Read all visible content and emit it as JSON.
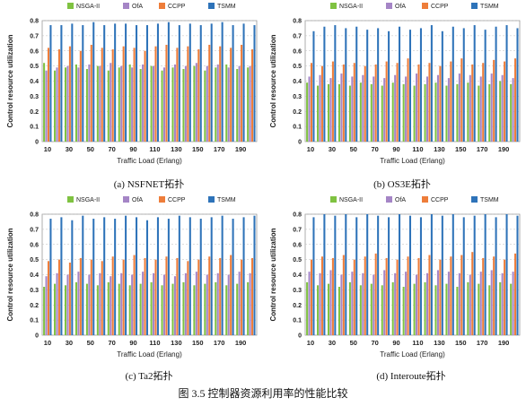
{
  "figure_caption": "图 3.5  控制器资源利用率的性能比较",
  "colors": {
    "NSGA-II": "#7fc241",
    "OfA": "#a585c6",
    "CCPP": "#ee7d3a",
    "TSMM": "#2e73b9"
  },
  "chart_data": [
    {
      "type": "bar",
      "caption": "(a)  NSFNET拓扑",
      "xlabel": "Traffic Load (Erlang)",
      "ylabel": "Control resource utilization",
      "ylim": [
        0,
        0.8
      ],
      "yticks": [
        "0",
        "0.1",
        "0.2",
        "0.3",
        "0.4",
        "0.5",
        "0.6",
        "0.7",
        "0.8"
      ],
      "xtick_labels": [
        "10",
        "30",
        "50",
        "70",
        "90",
        "110",
        "130",
        "150",
        "170",
        "190"
      ],
      "legend_position": "top",
      "grid": true,
      "categories": [
        "10",
        "20",
        "30",
        "40",
        "50",
        "60",
        "70",
        "80",
        "90",
        "100",
        "110",
        "120",
        "130",
        "140",
        "150",
        "160",
        "170",
        "180",
        "190",
        "200"
      ],
      "series": [
        {
          "name": "NSGA-II",
          "values": [
            0.52,
            0.47,
            0.49,
            0.51,
            0.48,
            0.5,
            0.47,
            0.49,
            0.51,
            0.48,
            0.5,
            0.47,
            0.49,
            0.48,
            0.5,
            0.47,
            0.49,
            0.51,
            0.48,
            0.49
          ]
        },
        {
          "name": "OfA",
          "values": [
            0.47,
            0.49,
            0.5,
            0.49,
            0.51,
            0.5,
            0.52,
            0.5,
            0.49,
            0.51,
            0.5,
            0.49,
            0.51,
            0.5,
            0.52,
            0.5,
            0.51,
            0.49,
            0.5,
            0.5
          ]
        },
        {
          "name": "CCPP",
          "values": [
            0.62,
            0.61,
            0.63,
            0.6,
            0.64,
            0.62,
            0.61,
            0.63,
            0.62,
            0.6,
            0.63,
            0.64,
            0.62,
            0.63,
            0.61,
            0.64,
            0.63,
            0.62,
            0.64,
            0.61
          ]
        },
        {
          "name": "TSMM",
          "values": [
            0.77,
            0.77,
            0.78,
            0.77,
            0.79,
            0.77,
            0.78,
            0.78,
            0.77,
            0.77,
            0.78,
            0.79,
            0.77,
            0.78,
            0.77,
            0.78,
            0.79,
            0.77,
            0.78,
            0.77
          ]
        }
      ]
    },
    {
      "type": "bar",
      "caption": "(b)  OS3E拓扑",
      "xlabel": "Traffic Load (Erlang)",
      "ylabel": "Control resource utilization",
      "ylim": [
        0,
        0.8
      ],
      "yticks": [
        "0",
        "0.1",
        "0.2",
        "0.3",
        "0.4",
        "0.5",
        "0.6",
        "0.7",
        "0.8"
      ],
      "xtick_labels": [
        "10",
        "30",
        "50",
        "70",
        "90",
        "110",
        "130",
        "150",
        "170",
        "190"
      ],
      "legend_position": "top",
      "grid": true,
      "categories": [
        "10",
        "20",
        "30",
        "40",
        "50",
        "60",
        "70",
        "80",
        "90",
        "100",
        "110",
        "120",
        "130",
        "140",
        "150",
        "160",
        "170",
        "180",
        "190",
        "200"
      ],
      "series": [
        {
          "name": "NSGA-II",
          "values": [
            0.39,
            0.37,
            0.38,
            0.38,
            0.37,
            0.39,
            0.38,
            0.37,
            0.39,
            0.38,
            0.37,
            0.38,
            0.39,
            0.37,
            0.38,
            0.39,
            0.37,
            0.38,
            0.4,
            0.38
          ]
        },
        {
          "name": "OfA",
          "values": [
            0.43,
            0.44,
            0.42,
            0.45,
            0.43,
            0.44,
            0.43,
            0.42,
            0.44,
            0.43,
            0.45,
            0.43,
            0.44,
            0.42,
            0.45,
            0.44,
            0.43,
            0.45,
            0.44,
            0.42
          ]
        },
        {
          "name": "CCPP",
          "values": [
            0.52,
            0.5,
            0.53,
            0.51,
            0.52,
            0.5,
            0.51,
            0.53,
            0.52,
            0.55,
            0.51,
            0.52,
            0.5,
            0.53,
            0.55,
            0.51,
            0.52,
            0.54,
            0.53,
            0.55
          ]
        },
        {
          "name": "TSMM",
          "values": [
            0.73,
            0.76,
            0.77,
            0.75,
            0.76,
            0.74,
            0.75,
            0.73,
            0.76,
            0.74,
            0.75,
            0.77,
            0.73,
            0.76,
            0.75,
            0.77,
            0.74,
            0.76,
            0.77,
            0.75
          ]
        }
      ]
    },
    {
      "type": "bar",
      "caption": "(c)  Ta2拓扑",
      "xlabel": "Traffic Load (Erlang)",
      "ylabel": "Control resource utilization",
      "ylim": [
        0,
        0.8
      ],
      "yticks": [
        "0",
        "0.1",
        "0.2",
        "0.3",
        "0.4",
        "0.5",
        "0.6",
        "0.7",
        "0.8"
      ],
      "xtick_labels": [
        "10",
        "30",
        "50",
        "70",
        "90",
        "110",
        "130",
        "150",
        "170",
        "190"
      ],
      "legend_position": "top",
      "grid": true,
      "categories": [
        "10",
        "20",
        "30",
        "40",
        "50",
        "60",
        "70",
        "80",
        "90",
        "100",
        "110",
        "120",
        "130",
        "140",
        "150",
        "160",
        "170",
        "180",
        "190",
        "200"
      ],
      "series": [
        {
          "name": "NSGA-II",
          "values": [
            0.32,
            0.34,
            0.33,
            0.35,
            0.34,
            0.33,
            0.35,
            0.34,
            0.33,
            0.34,
            0.35,
            0.33,
            0.34,
            0.35,
            0.33,
            0.34,
            0.35,
            0.33,
            0.34,
            0.35
          ]
        },
        {
          "name": "OfA",
          "values": [
            0.39,
            0.41,
            0.4,
            0.42,
            0.4,
            0.41,
            0.39,
            0.41,
            0.4,
            0.42,
            0.41,
            0.4,
            0.39,
            0.41,
            0.42,
            0.4,
            0.41,
            0.4,
            0.42,
            0.41
          ]
        },
        {
          "name": "CCPP",
          "values": [
            0.49,
            0.5,
            0.48,
            0.51,
            0.5,
            0.49,
            0.52,
            0.5,
            0.53,
            0.51,
            0.5,
            0.52,
            0.51,
            0.49,
            0.5,
            0.52,
            0.51,
            0.53,
            0.5,
            0.51
          ]
        },
        {
          "name": "TSMM",
          "values": [
            0.77,
            0.78,
            0.76,
            0.79,
            0.77,
            0.78,
            0.77,
            0.79,
            0.78,
            0.76,
            0.78,
            0.77,
            0.79,
            0.78,
            0.77,
            0.78,
            0.79,
            0.77,
            0.78,
            0.79
          ]
        }
      ]
    },
    {
      "type": "bar",
      "caption": "(d)  Interoute拓扑",
      "xlabel": "Traffic Load (Erlang)",
      "ylabel": "Control resource utilization",
      "ylim": [
        0,
        0.8
      ],
      "yticks": [
        "0",
        "0.1",
        "0.2",
        "0.3",
        "0.4",
        "0.5",
        "0.6",
        "0.7",
        "0.8"
      ],
      "xtick_labels": [
        "10",
        "30",
        "50",
        "70",
        "90",
        "110",
        "130",
        "150",
        "170",
        "190"
      ],
      "legend_position": "top",
      "grid": true,
      "categories": [
        "10",
        "20",
        "30",
        "40",
        "50",
        "60",
        "70",
        "80",
        "90",
        "100",
        "110",
        "120",
        "130",
        "140",
        "150",
        "160",
        "170",
        "180",
        "190",
        "200"
      ],
      "series": [
        {
          "name": "NSGA-II",
          "values": [
            0.35,
            0.33,
            0.34,
            0.32,
            0.35,
            0.33,
            0.34,
            0.33,
            0.35,
            0.32,
            0.34,
            0.35,
            0.33,
            0.34,
            0.32,
            0.35,
            0.34,
            0.33,
            0.35,
            0.34
          ]
        },
        {
          "name": "OfA",
          "values": [
            0.42,
            0.41,
            0.43,
            0.4,
            0.42,
            0.41,
            0.4,
            0.43,
            0.41,
            0.42,
            0.4,
            0.41,
            0.43,
            0.42,
            0.41,
            0.4,
            0.42,
            0.43,
            0.41,
            0.42
          ]
        },
        {
          "name": "CCPP",
          "values": [
            0.5,
            0.52,
            0.51,
            0.53,
            0.5,
            0.52,
            0.54,
            0.51,
            0.5,
            0.52,
            0.51,
            0.53,
            0.5,
            0.52,
            0.53,
            0.55,
            0.51,
            0.52,
            0.5,
            0.54
          ]
        },
        {
          "name": "TSMM",
          "values": [
            0.78,
            0.8,
            0.79,
            0.8,
            0.78,
            0.8,
            0.79,
            0.78,
            0.8,
            0.79,
            0.78,
            0.8,
            0.79,
            0.8,
            0.78,
            0.79,
            0.8,
            0.78,
            0.8,
            0.79
          ]
        }
      ]
    }
  ]
}
